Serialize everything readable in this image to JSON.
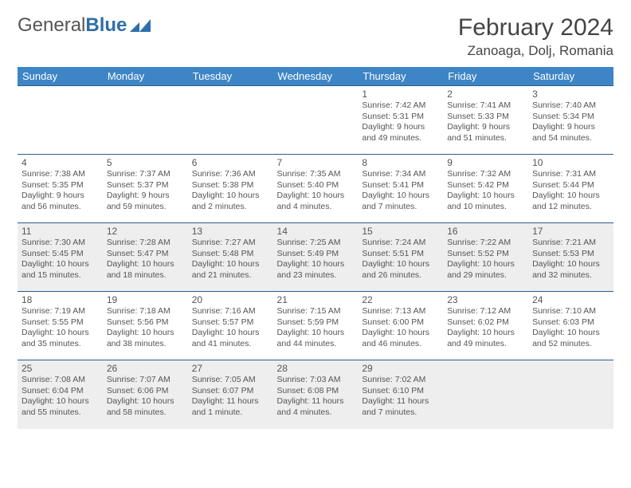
{
  "logo": {
    "textA": "General",
    "textB": "Blue"
  },
  "title": "February 2024",
  "location": "Zanoaga, Dolj, Romania",
  "colors": {
    "header_bg": "#3d85c6",
    "header_text": "#ffffff",
    "row_border": "#2f5d87",
    "alt_row_bg": "#eeeeee",
    "logo_accent": "#2f6fa8"
  },
  "weekdays": [
    "Sunday",
    "Monday",
    "Tuesday",
    "Wednesday",
    "Thursday",
    "Friday",
    "Saturday"
  ],
  "weeks": [
    [
      null,
      null,
      null,
      null,
      {
        "d": "1",
        "sr": "7:42 AM",
        "ss": "5:31 PM",
        "dl": "9 hours and 49 minutes."
      },
      {
        "d": "2",
        "sr": "7:41 AM",
        "ss": "5:33 PM",
        "dl": "9 hours and 51 minutes."
      },
      {
        "d": "3",
        "sr": "7:40 AM",
        "ss": "5:34 PM",
        "dl": "9 hours and 54 minutes."
      }
    ],
    [
      {
        "d": "4",
        "sr": "7:38 AM",
        "ss": "5:35 PM",
        "dl": "9 hours and 56 minutes."
      },
      {
        "d": "5",
        "sr": "7:37 AM",
        "ss": "5:37 PM",
        "dl": "9 hours and 59 minutes."
      },
      {
        "d": "6",
        "sr": "7:36 AM",
        "ss": "5:38 PM",
        "dl": "10 hours and 2 minutes."
      },
      {
        "d": "7",
        "sr": "7:35 AM",
        "ss": "5:40 PM",
        "dl": "10 hours and 4 minutes."
      },
      {
        "d": "8",
        "sr": "7:34 AM",
        "ss": "5:41 PM",
        "dl": "10 hours and 7 minutes."
      },
      {
        "d": "9",
        "sr": "7:32 AM",
        "ss": "5:42 PM",
        "dl": "10 hours and 10 minutes."
      },
      {
        "d": "10",
        "sr": "7:31 AM",
        "ss": "5:44 PM",
        "dl": "10 hours and 12 minutes."
      }
    ],
    [
      {
        "d": "11",
        "sr": "7:30 AM",
        "ss": "5:45 PM",
        "dl": "10 hours and 15 minutes."
      },
      {
        "d": "12",
        "sr": "7:28 AM",
        "ss": "5:47 PM",
        "dl": "10 hours and 18 minutes."
      },
      {
        "d": "13",
        "sr": "7:27 AM",
        "ss": "5:48 PM",
        "dl": "10 hours and 21 minutes."
      },
      {
        "d": "14",
        "sr": "7:25 AM",
        "ss": "5:49 PM",
        "dl": "10 hours and 23 minutes."
      },
      {
        "d": "15",
        "sr": "7:24 AM",
        "ss": "5:51 PM",
        "dl": "10 hours and 26 minutes."
      },
      {
        "d": "16",
        "sr": "7:22 AM",
        "ss": "5:52 PM",
        "dl": "10 hours and 29 minutes."
      },
      {
        "d": "17",
        "sr": "7:21 AM",
        "ss": "5:53 PM",
        "dl": "10 hours and 32 minutes."
      }
    ],
    [
      {
        "d": "18",
        "sr": "7:19 AM",
        "ss": "5:55 PM",
        "dl": "10 hours and 35 minutes."
      },
      {
        "d": "19",
        "sr": "7:18 AM",
        "ss": "5:56 PM",
        "dl": "10 hours and 38 minutes."
      },
      {
        "d": "20",
        "sr": "7:16 AM",
        "ss": "5:57 PM",
        "dl": "10 hours and 41 minutes."
      },
      {
        "d": "21",
        "sr": "7:15 AM",
        "ss": "5:59 PM",
        "dl": "10 hours and 44 minutes."
      },
      {
        "d": "22",
        "sr": "7:13 AM",
        "ss": "6:00 PM",
        "dl": "10 hours and 46 minutes."
      },
      {
        "d": "23",
        "sr": "7:12 AM",
        "ss": "6:02 PM",
        "dl": "10 hours and 49 minutes."
      },
      {
        "d": "24",
        "sr": "7:10 AM",
        "ss": "6:03 PM",
        "dl": "10 hours and 52 minutes."
      }
    ],
    [
      {
        "d": "25",
        "sr": "7:08 AM",
        "ss": "6:04 PM",
        "dl": "10 hours and 55 minutes."
      },
      {
        "d": "26",
        "sr": "7:07 AM",
        "ss": "6:06 PM",
        "dl": "10 hours and 58 minutes."
      },
      {
        "d": "27",
        "sr": "7:05 AM",
        "ss": "6:07 PM",
        "dl": "11 hours and 1 minute."
      },
      {
        "d": "28",
        "sr": "7:03 AM",
        "ss": "6:08 PM",
        "dl": "11 hours and 4 minutes."
      },
      {
        "d": "29",
        "sr": "7:02 AM",
        "ss": "6:10 PM",
        "dl": "11 hours and 7 minutes."
      },
      null,
      null
    ]
  ],
  "labels": {
    "sunrise": "Sunrise:",
    "sunset": "Sunset:",
    "daylight": "Daylight:"
  }
}
